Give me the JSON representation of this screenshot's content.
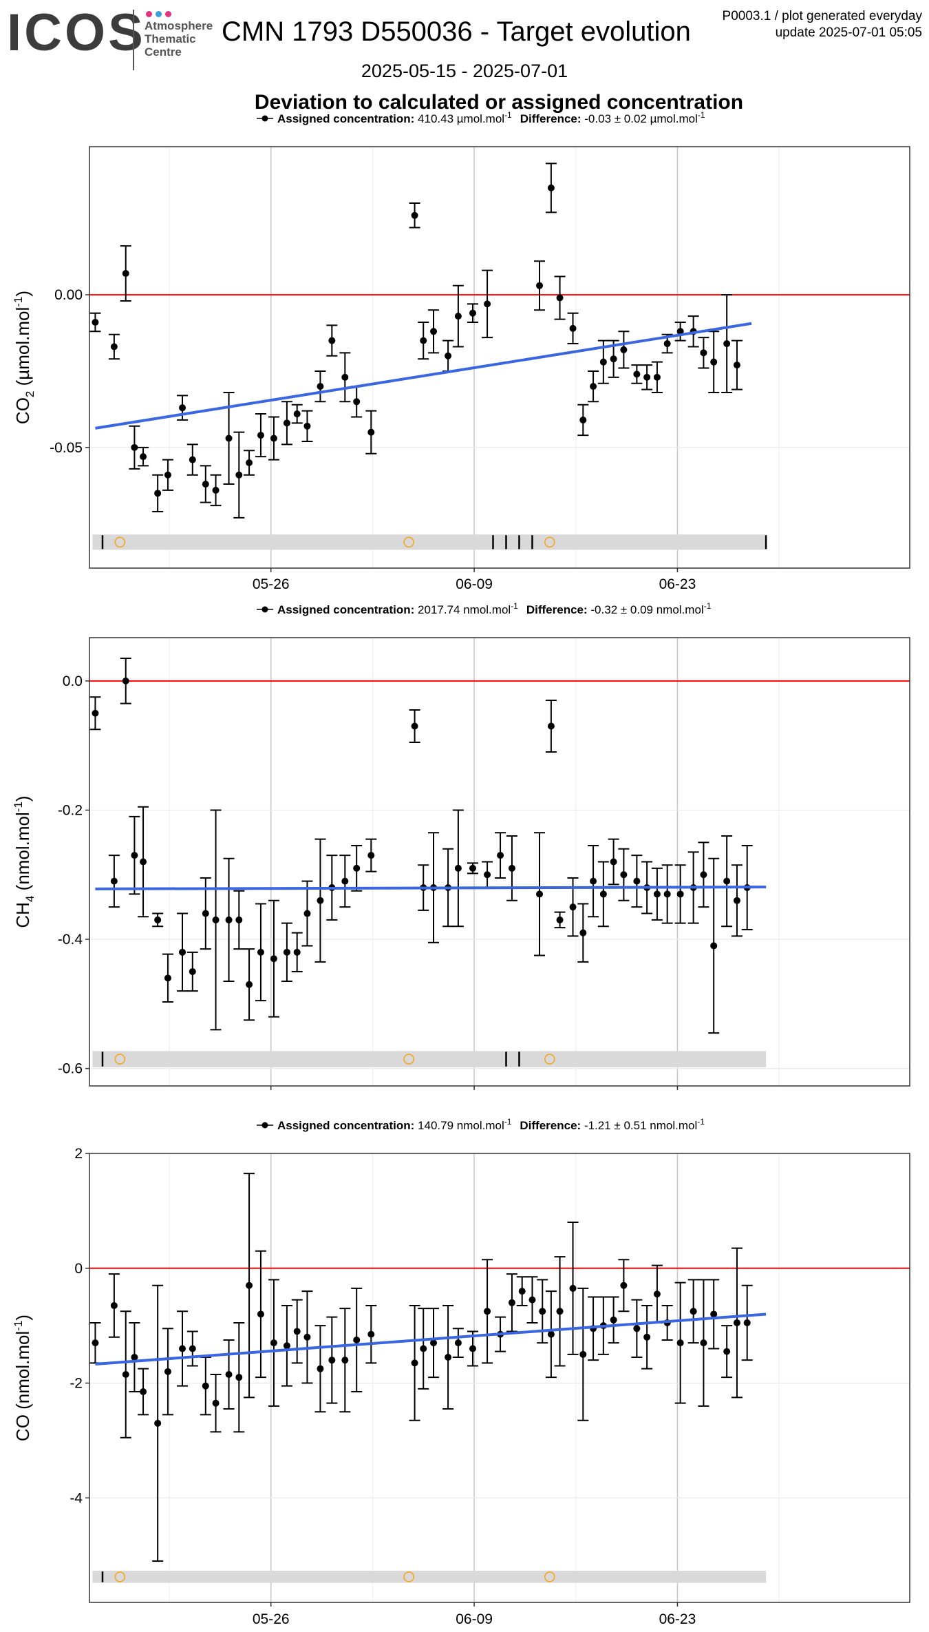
{
  "header": {
    "logo_text": "ICOS",
    "logo_sub_lines": [
      "Atmosphere",
      "Thematic",
      "Centre"
    ],
    "logo_dot_colors": [
      "#e0337e",
      "#3aa0d8",
      "#e0337e"
    ],
    "title": "CMN 1793 D550036 - Target evolution",
    "meta_line1": "P0003.1 / plot generated everyday",
    "meta_line2": "update  2025-07-01 05:05",
    "date_range": "2025-05-15 - 2025-07-01",
    "subtitle": "Deviation to calculated or assigned concentration"
  },
  "colors": {
    "points": "#000000",
    "trend": "#3a66e0",
    "zero_line": "#ff0000",
    "band": "#d9d9d9",
    "marker_circle": "#f5a623",
    "grid_major": "#c8c8c8",
    "grid_minor": "#ececec",
    "border": "#333333"
  },
  "chart_data": [
    {
      "type": "scatter",
      "name": "co2",
      "legend": {
        "label_bold": "Assigned concentration:",
        "value": "410.43 µmol.mol",
        "value_sup": "-1",
        "diff_bold": "Difference:",
        "diff_value": "-0.03 ± 0.02 µmol.mol",
        "diff_sup": "-1"
      },
      "ylabel": {
        "base": "CO",
        "sub": "2",
        "rest": " (µmol.mol",
        "sup": "-1",
        "end": ")"
      },
      "xlim": [
        0,
        56.5
      ],
      "ylim": [
        -0.0895,
        0.0485
      ],
      "xticks": [
        {
          "x": 12.5,
          "label": "05-26"
        },
        {
          "x": 26.5,
          "label": "06-09"
        },
        {
          "x": 40.5,
          "label": "06-23"
        }
      ],
      "yticks": [
        {
          "y": 0,
          "label": "0.00"
        },
        {
          "y": -0.05,
          "label": "-0.05"
        }
      ],
      "trend": {
        "x0": 0.4,
        "y0": -0.0437,
        "x1": 45.6,
        "y1": -0.0094
      },
      "band": {
        "x0": 0.4,
        "x1": 46.6,
        "ytop": -0.0785,
        "ybot": -0.0835
      },
      "ticks": [
        0.9,
        27.8,
        28.7,
        29.6,
        30.5,
        46.6
      ],
      "circles": [
        2.1,
        22.0,
        31.7
      ],
      "points": [
        [
          0.4,
          -0.009,
          0.003
        ],
        [
          1.7,
          -0.017,
          0.004
        ],
        [
          2.5,
          0.007,
          0.009
        ],
        [
          3.1,
          -0.05,
          0.007
        ],
        [
          3.7,
          -0.053,
          0.003
        ],
        [
          4.7,
          -0.065,
          0.006
        ],
        [
          5.4,
          -0.059,
          0.005
        ],
        [
          6.4,
          -0.037,
          0.004
        ],
        [
          7.1,
          -0.054,
          0.005
        ],
        [
          8.0,
          -0.062,
          0.006
        ],
        [
          8.7,
          -0.064,
          0.005
        ],
        [
          9.6,
          -0.047,
          0.015
        ],
        [
          10.3,
          -0.059,
          0.014
        ],
        [
          11.0,
          -0.055,
          0.004
        ],
        [
          11.8,
          -0.046,
          0.007
        ],
        [
          12.7,
          -0.047,
          0.007
        ],
        [
          13.6,
          -0.042,
          0.007
        ],
        [
          14.3,
          -0.039,
          0.003
        ],
        [
          15.0,
          -0.043,
          0.005
        ],
        [
          15.9,
          -0.03,
          0.005
        ],
        [
          16.7,
          -0.015,
          0.005
        ],
        [
          17.6,
          -0.027,
          0.008
        ],
        [
          18.4,
          -0.035,
          0.005
        ],
        [
          19.4,
          -0.045,
          0.007
        ],
        [
          22.4,
          0.026,
          0.004
        ],
        [
          23.0,
          -0.015,
          0.006
        ],
        [
          23.7,
          -0.012,
          0.007
        ],
        [
          24.7,
          -0.02,
          0.005
        ],
        [
          25.4,
          -0.007,
          0.01
        ],
        [
          26.4,
          -0.006,
          0.003
        ],
        [
          27.4,
          -0.003,
          0.011
        ],
        [
          31.0,
          0.003,
          0.008
        ],
        [
          31.8,
          0.035,
          0.008
        ],
        [
          32.4,
          -0.001,
          0.007
        ],
        [
          33.3,
          -0.011,
          0.005
        ],
        [
          34.0,
          -0.041,
          0.005
        ],
        [
          34.7,
          -0.03,
          0.005
        ],
        [
          35.4,
          -0.022,
          0.007
        ],
        [
          36.1,
          -0.021,
          0.006
        ],
        [
          36.8,
          -0.018,
          0.006
        ],
        [
          37.7,
          -0.026,
          0.003
        ],
        [
          38.4,
          -0.027,
          0.004
        ],
        [
          39.1,
          -0.027,
          0.005
        ],
        [
          39.8,
          -0.016,
          0.003
        ],
        [
          40.7,
          -0.012,
          0.003
        ],
        [
          41.6,
          -0.012,
          0.005
        ],
        [
          42.3,
          -0.019,
          0.005
        ],
        [
          43.0,
          -0.022,
          0.01
        ],
        [
          43.9,
          -0.016,
          0.016
        ],
        [
          44.6,
          -0.023,
          0.008
        ]
      ]
    },
    {
      "type": "scatter",
      "name": "ch4",
      "legend": {
        "label_bold": "Assigned concentration:",
        "value": "2017.74 nmol.mol",
        "value_sup": "-1",
        "diff_bold": "Difference:",
        "diff_value": "-0.32 ± 0.09 nmol.mol",
        "diff_sup": "-1"
      },
      "ylabel": {
        "base": "CH",
        "sub": "4",
        "rest": " (nmol.mol",
        "sup": "-1",
        "end": ")"
      },
      "xlim": [
        0,
        56.5
      ],
      "ylim": [
        -0.627,
        0.067
      ],
      "xticks": [
        {
          "x": 12.5,
          "label": "05-26"
        },
        {
          "x": 26.5,
          "label": "06-09"
        },
        {
          "x": 40.5,
          "label": "06-23"
        }
      ],
      "yticks": [
        {
          "y": 0,
          "label": "0.0"
        },
        {
          "y": -0.2,
          "label": "-0.2"
        },
        {
          "y": -0.4,
          "label": "-0.4"
        },
        {
          "y": -0.6,
          "label": "-0.6"
        }
      ],
      "trend": {
        "x0": 0.4,
        "y0": -0.322,
        "x1": 46.6,
        "y1": -0.319
      },
      "band": {
        "x0": 0.4,
        "x1": 46.6,
        "ytop": -0.573,
        "ybot": -0.598
      },
      "ticks": [
        0.9,
        28.7,
        29.6
      ],
      "circles": [
        2.1,
        22.0,
        31.7
      ],
      "points": [
        [
          0.4,
          -0.05,
          0.025
        ],
        [
          1.7,
          -0.31,
          0.04
        ],
        [
          2.5,
          0.0,
          0.035
        ],
        [
          3.1,
          -0.27,
          0.06
        ],
        [
          3.7,
          -0.28,
          0.085
        ],
        [
          4.7,
          -0.37,
          0.01
        ],
        [
          5.4,
          -0.46,
          0.037
        ],
        [
          6.4,
          -0.42,
          0.06
        ],
        [
          7.1,
          -0.45,
          0.03
        ],
        [
          8.0,
          -0.36,
          0.055
        ],
        [
          8.7,
          -0.37,
          0.17
        ],
        [
          9.6,
          -0.37,
          0.095
        ],
        [
          10.3,
          -0.37,
          0.045
        ],
        [
          11.0,
          -0.47,
          0.055
        ],
        [
          11.8,
          -0.42,
          0.075
        ],
        [
          12.7,
          -0.43,
          0.09
        ],
        [
          13.6,
          -0.42,
          0.045
        ],
        [
          14.3,
          -0.42,
          0.03
        ],
        [
          15.0,
          -0.36,
          0.05
        ],
        [
          15.9,
          -0.34,
          0.095
        ],
        [
          16.7,
          -0.32,
          0.05
        ],
        [
          17.6,
          -0.31,
          0.04
        ],
        [
          18.4,
          -0.29,
          0.035
        ],
        [
          19.4,
          -0.27,
          0.025
        ],
        [
          22.4,
          -0.07,
          0.025
        ],
        [
          23.0,
          -0.32,
          0.035
        ],
        [
          23.7,
          -0.32,
          0.085
        ],
        [
          24.7,
          -0.32,
          0.06
        ],
        [
          25.4,
          -0.29,
          0.09
        ],
        [
          26.4,
          -0.29,
          0.008
        ],
        [
          27.4,
          -0.3,
          0.02
        ],
        [
          28.3,
          -0.27,
          0.035
        ],
        [
          29.1,
          -0.29,
          0.05
        ],
        [
          31.0,
          -0.33,
          0.095
        ],
        [
          31.8,
          -0.07,
          0.04
        ],
        [
          32.4,
          -0.37,
          0.012
        ],
        [
          33.3,
          -0.35,
          0.045
        ],
        [
          34.0,
          -0.39,
          0.045
        ],
        [
          34.7,
          -0.31,
          0.055
        ],
        [
          35.4,
          -0.33,
          0.05
        ],
        [
          36.1,
          -0.28,
          0.035
        ],
        [
          36.8,
          -0.3,
          0.04
        ],
        [
          37.7,
          -0.31,
          0.04
        ],
        [
          38.4,
          -0.32,
          0.04
        ],
        [
          39.1,
          -0.33,
          0.04
        ],
        [
          39.8,
          -0.33,
          0.045
        ],
        [
          40.7,
          -0.33,
          0.045
        ],
        [
          41.6,
          -0.32,
          0.055
        ],
        [
          42.3,
          -0.3,
          0.05
        ],
        [
          43.0,
          -0.41,
          0.135
        ],
        [
          43.9,
          -0.31,
          0.07
        ],
        [
          44.6,
          -0.34,
          0.055
        ],
        [
          45.3,
          -0.32,
          0.065
        ]
      ]
    },
    {
      "type": "scatter",
      "name": "co",
      "legend": {
        "label_bold": "Assigned concentration:",
        "value": "140.79 nmol.mol",
        "value_sup": "-1",
        "diff_bold": "Difference:",
        "diff_value": "-1.21 ± 0.51 nmol.mol",
        "diff_sup": "-1"
      },
      "ylabel": {
        "base": "CO",
        "sub": "",
        "rest": " (nmol.mol",
        "sup": "-1",
        "end": ")"
      },
      "xlim": [
        0,
        56.5
      ],
      "ylim": [
        -5.82,
        2.0
      ],
      "xticks": [
        {
          "x": 12.5,
          "label": "05-26"
        },
        {
          "x": 26.5,
          "label": "06-09"
        },
        {
          "x": 40.5,
          "label": "06-23"
        }
      ],
      "yticks": [
        {
          "y": 2,
          "label": "2"
        },
        {
          "y": 0,
          "label": "0"
        },
        {
          "y": -2,
          "label": "-2"
        },
        {
          "y": -4,
          "label": "-4"
        }
      ],
      "trend": {
        "x0": 0.4,
        "y0": -1.67,
        "x1": 46.6,
        "y1": -0.8
      },
      "band": {
        "x0": 0.4,
        "x1": 46.6,
        "ytop": -5.27,
        "ybot": -5.48
      },
      "ticks": [
        0.9
      ],
      "circles": [
        2.1,
        22.0,
        31.7
      ],
      "points": [
        [
          0.4,
          -1.3,
          0.35
        ],
        [
          1.7,
          -0.65,
          0.55
        ],
        [
          2.5,
          -1.85,
          1.1
        ],
        [
          3.1,
          -1.55,
          0.6
        ],
        [
          3.7,
          -2.15,
          0.4
        ],
        [
          4.7,
          -2.7,
          2.4
        ],
        [
          5.4,
          -1.8,
          0.75
        ],
        [
          6.4,
          -1.4,
          0.65
        ],
        [
          7.1,
          -1.4,
          0.3
        ],
        [
          8.0,
          -2.05,
          0.5
        ],
        [
          8.7,
          -2.35,
          0.5
        ],
        [
          9.6,
          -1.85,
          0.6
        ],
        [
          10.3,
          -1.9,
          0.95
        ],
        [
          11.0,
          -0.3,
          1.95
        ],
        [
          11.8,
          -0.8,
          1.1
        ],
        [
          12.7,
          -1.3,
          1.1
        ],
        [
          13.6,
          -1.35,
          0.7
        ],
        [
          14.3,
          -1.1,
          0.55
        ],
        [
          15.0,
          -1.2,
          0.8
        ],
        [
          15.9,
          -1.75,
          0.75
        ],
        [
          16.7,
          -1.6,
          0.75
        ],
        [
          17.6,
          -1.6,
          0.9
        ],
        [
          18.4,
          -1.25,
          0.9
        ],
        [
          19.4,
          -1.15,
          0.5
        ],
        [
          22.4,
          -1.65,
          1.0
        ],
        [
          23.0,
          -1.4,
          0.7
        ],
        [
          23.7,
          -1.3,
          0.6
        ],
        [
          24.7,
          -1.55,
          0.9
        ],
        [
          25.4,
          -1.3,
          0.25
        ],
        [
          26.4,
          -1.4,
          0.3
        ],
        [
          27.4,
          -0.75,
          0.9
        ],
        [
          28.3,
          -1.15,
          0.3
        ],
        [
          29.1,
          -0.6,
          0.5
        ],
        [
          29.8,
          -0.4,
          0.25
        ],
        [
          30.5,
          -0.55,
          0.4
        ],
        [
          31.2,
          -0.75,
          0.55
        ],
        [
          31.8,
          -1.15,
          0.75
        ],
        [
          32.4,
          -0.75,
          0.95
        ],
        [
          33.3,
          -0.35,
          1.15
        ],
        [
          34.0,
          -1.5,
          1.15
        ],
        [
          34.7,
          -1.05,
          0.55
        ],
        [
          35.4,
          -1.0,
          0.5
        ],
        [
          36.1,
          -0.9,
          0.4
        ],
        [
          36.8,
          -0.3,
          0.45
        ],
        [
          37.7,
          -1.05,
          0.5
        ],
        [
          38.4,
          -1.2,
          0.55
        ],
        [
          39.1,
          -0.45,
          0.5
        ],
        [
          39.8,
          -0.95,
          0.3
        ],
        [
          40.7,
          -1.3,
          1.05
        ],
        [
          41.6,
          -0.75,
          0.55
        ],
        [
          42.3,
          -1.3,
          1.1
        ],
        [
          43.0,
          -0.8,
          0.6
        ],
        [
          43.9,
          -1.45,
          0.45
        ],
        [
          44.6,
          -0.95,
          1.3
        ],
        [
          45.3,
          -0.95,
          0.65
        ]
      ]
    }
  ]
}
